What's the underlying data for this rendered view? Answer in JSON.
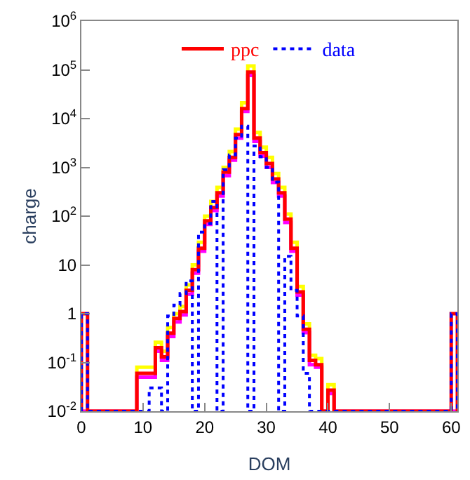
{
  "chart_data": {
    "type": "histogram",
    "xlabel": "DOM",
    "ylabel": "charge",
    "log": "y",
    "legend": "top",
    "bins": [
      0,
      1,
      2,
      3,
      4,
      5,
      6,
      7,
      8,
      9,
      10,
      11,
      12,
      13,
      14,
      15,
      16,
      17,
      18,
      19,
      20,
      21,
      22,
      23,
      24,
      25,
      26,
      27,
      28,
      29,
      30,
      31,
      32,
      33,
      34,
      35,
      36,
      37,
      38,
      39,
      40,
      41,
      42,
      43,
      44,
      45,
      46,
      47,
      48,
      49,
      50,
      51,
      52,
      53,
      54,
      55,
      56,
      57,
      58,
      59,
      60,
      61
    ],
    "series": [
      {
        "color": "#ffff00",
        "line_style": "solid",
        "values": [
          null,
          null,
          null,
          null,
          null,
          null,
          null,
          null,
          null,
          0.08,
          0.08,
          0.08,
          0.26,
          0.17,
          0.52,
          1,
          1.4,
          3.9,
          10,
          29,
          100,
          200,
          390,
          1000,
          2100,
          6100,
          21000,
          120000,
          5200,
          2600,
          1600,
          750,
          390,
          110,
          29,
          3.6,
          0.62,
          0.14,
          0.12,
          null,
          0.035,
          null,
          null,
          null,
          null,
          null,
          null,
          null,
          null,
          null,
          null,
          null,
          null,
          null,
          null,
          null,
          null,
          null,
          null,
          null,
          null
        ]
      },
      {
        "color": "#ff00ff",
        "line_style": "solid",
        "values": [
          null,
          null,
          null,
          null,
          null,
          null,
          null,
          null,
          null,
          0.05,
          0.05,
          0.05,
          0.17,
          0.11,
          0.34,
          0.68,
          0.94,
          2.5,
          6.8,
          19,
          68,
          130,
          260,
          680,
          1400,
          4000,
          14000,
          77000,
          3400,
          1700,
          1000,
          490,
          260,
          74,
          19,
          2.4,
          0.41,
          0.09,
          0.08,
          null,
          0.023,
          null,
          null,
          null,
          null,
          null,
          null,
          null,
          null,
          null,
          null,
          null,
          null,
          null,
          null,
          null,
          null,
          null,
          null,
          null,
          null
        ]
      },
      {
        "name": "ppc",
        "color": "#ff0000",
        "line_style": "solid",
        "values": [
          1,
          null,
          null,
          null,
          null,
          null,
          null,
          null,
          null,
          0.06,
          0.06,
          0.06,
          0.2,
          0.13,
          0.4,
          0.8,
          1.1,
          3,
          8,
          22,
          80,
          150,
          300,
          800,
          1600,
          4700,
          16000,
          90000,
          4000,
          2000,
          1200,
          580,
          300,
          87,
          22,
          2.8,
          0.48,
          0.11,
          0.09,
          null,
          0.027,
          null,
          null,
          null,
          null,
          null,
          null,
          null,
          null,
          null,
          null,
          null,
          null,
          null,
          null,
          null,
          null,
          null,
          null,
          null,
          1
        ]
      },
      {
        "name": "data",
        "color": "#0000ff",
        "line_style": "dotted",
        "values": [
          1,
          null,
          null,
          null,
          null,
          null,
          null,
          null,
          null,
          null,
          null,
          0.03,
          0.03,
          null,
          0.9,
          1.5,
          2.6,
          4.7,
          null,
          47,
          70,
          200,
          null,
          900,
          1800,
          4000,
          7000,
          null,
          2750,
          1650,
          1000,
          500,
          null,
          15,
          3,
          0.9,
          0.06,
          null,
          null,
          null,
          null,
          null,
          null,
          null,
          null,
          null,
          null,
          null,
          null,
          null,
          null,
          null,
          null,
          null,
          null,
          null,
          null,
          null,
          null,
          null,
          1
        ]
      }
    ],
    "xlim": [
      0,
      61
    ],
    "xticks": [
      0,
      10,
      20,
      30,
      40,
      50,
      60
    ],
    "ylim": [
      0.01,
      1000000
    ],
    "yticks": [
      {
        "value": 0.01,
        "label": "10$^{-2}$"
      },
      {
        "value": 0.1,
        "label": "10$^{-1}$"
      },
      1,
      10,
      {
        "value": 100,
        "label": "10$^{2}$"
      },
      {
        "value": 1000,
        "label": "10$^{3}$"
      },
      {
        "value": 10000,
        "label": "10$^{4}$"
      },
      {
        "value": 100000,
        "label": "10$^{5}$"
      },
      {
        "value": 1000000,
        "label": "10$^{6}$"
      }
    ]
  }
}
